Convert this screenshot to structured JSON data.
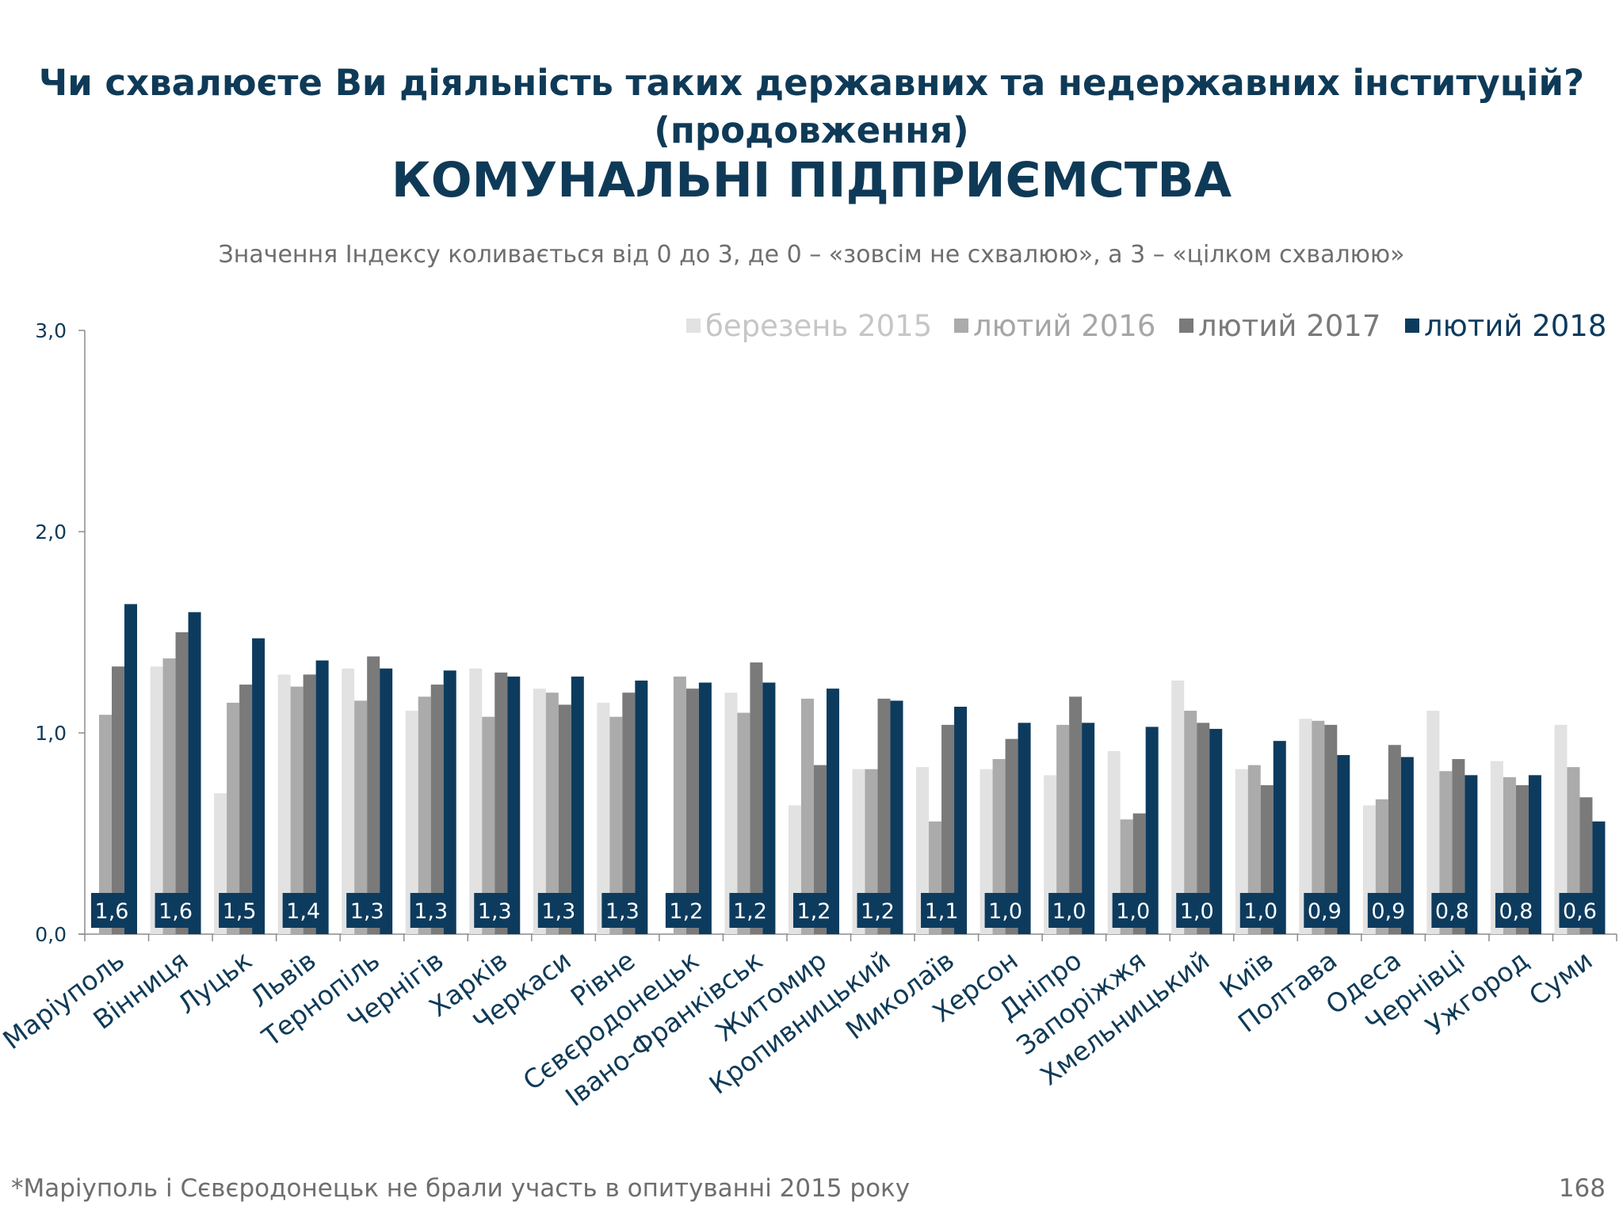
{
  "header": {
    "title_line1": "Чи схвалюєте Ви діяльність таких державних та недержавних інституцій?",
    "title_line2": "(продовження)",
    "title_main": "КОМУНАЛЬНІ ПІДПРИЄМСТВА",
    "subtitle": "Значення Індексу коливається від 0 до 3, де 0 – «зовсім не схвалюю», а 3 – «цілком схвалюю»"
  },
  "footer": {
    "footnote": "*Маріуполь і Сєвєродонецьк не брали участь в опитуванні 2015 року",
    "page_number": "168"
  },
  "chart_data": {
    "type": "bar",
    "ylim": [
      0,
      3
    ],
    "yticks": [
      "0,0",
      "1,0",
      "2,0",
      "3,0"
    ],
    "legend_position": "top-right",
    "grid": false,
    "categories": [
      "Маріуполь",
      "Вінниця",
      "Луцьк",
      "Львів",
      "Тернопіль",
      "Чернігів",
      "Харків",
      "Черкаси",
      "Рівне",
      "Сєвєродонецьк",
      "Івано-Франківськ",
      "Житомир",
      "Кропивницький",
      "Миколаїв",
      "Херсон",
      "Дніпро",
      "Запоріжжя",
      "Хмельницький",
      "Київ",
      "Полтава",
      "Одеса",
      "Чернівці",
      "Ужгород",
      "Суми"
    ],
    "series": [
      {
        "name": "березень 2015",
        "color": "#e2e2e2",
        "values": [
          null,
          1.33,
          0.7,
          1.29,
          1.32,
          1.11,
          1.32,
          1.22,
          1.15,
          null,
          1.2,
          0.64,
          0.82,
          0.83,
          0.82,
          0.79,
          0.91,
          1.26,
          0.82,
          1.07,
          0.64,
          1.11,
          0.86,
          1.04
        ]
      },
      {
        "name": "лютий 2016",
        "color": "#ababab",
        "values": [
          1.09,
          1.37,
          1.15,
          1.23,
          1.16,
          1.18,
          1.08,
          1.2,
          1.08,
          1.28,
          1.1,
          1.17,
          0.82,
          0.56,
          0.87,
          1.04,
          0.57,
          1.11,
          0.84,
          1.06,
          0.67,
          0.81,
          0.78,
          0.83
        ]
      },
      {
        "name": "лютий 2017",
        "color": "#7a7a7a",
        "values": [
          1.33,
          1.5,
          1.24,
          1.29,
          1.38,
          1.24,
          1.3,
          1.14,
          1.2,
          1.22,
          1.35,
          0.84,
          1.17,
          1.04,
          0.97,
          1.18,
          0.6,
          1.05,
          0.74,
          1.04,
          0.94,
          0.87,
          0.74,
          0.68
        ]
      },
      {
        "name": "лютий 2018",
        "color": "#0d3b5e",
        "values": [
          1.64,
          1.6,
          1.47,
          1.36,
          1.32,
          1.31,
          1.28,
          1.28,
          1.26,
          1.25,
          1.25,
          1.22,
          1.16,
          1.13,
          1.05,
          1.05,
          1.03,
          1.02,
          0.96,
          0.89,
          0.88,
          0.79,
          0.79,
          0.56
        ]
      }
    ],
    "data_labels": [
      "1,6",
      "1,6",
      "1,5",
      "1,4",
      "1,3",
      "1,3",
      "1,3",
      "1,3",
      "1,3",
      "1,2",
      "1,2",
      "1,2",
      "1,2",
      "1,1",
      "1,0",
      "1,0",
      "1,0",
      "1,0",
      "1,0",
      "0,9",
      "0,9",
      "0,8",
      "0,8",
      "0,6"
    ]
  }
}
